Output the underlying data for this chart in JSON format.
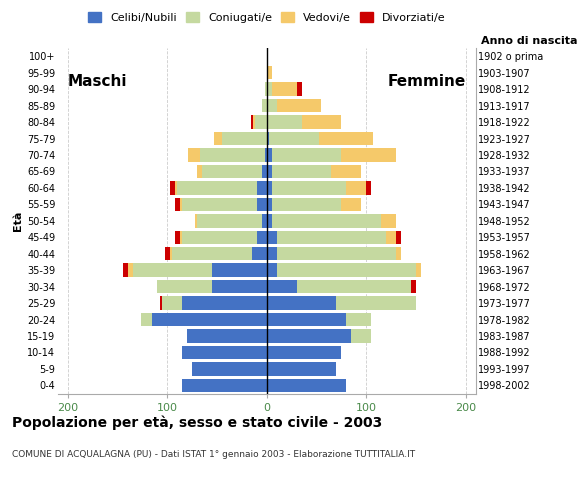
{
  "age_groups": [
    "0-4",
    "5-9",
    "10-14",
    "15-19",
    "20-24",
    "25-29",
    "30-34",
    "35-39",
    "40-44",
    "45-49",
    "50-54",
    "55-59",
    "60-64",
    "65-69",
    "70-74",
    "75-79",
    "80-84",
    "85-89",
    "90-94",
    "95-99",
    "100+"
  ],
  "birth_years": [
    "1998-2002",
    "1993-1997",
    "1988-1992",
    "1983-1987",
    "1978-1982",
    "1973-1977",
    "1968-1972",
    "1963-1967",
    "1958-1962",
    "1953-1957",
    "1948-1952",
    "1943-1947",
    "1938-1942",
    "1933-1937",
    "1928-1932",
    "1923-1927",
    "1918-1922",
    "1913-1917",
    "1908-1912",
    "1903-1907",
    "1902 o prima"
  ],
  "males": {
    "celibi": [
      85,
      75,
      85,
      80,
      115,
      85,
      55,
      55,
      15,
      10,
      5,
      10,
      10,
      5,
      2,
      0,
      0,
      0,
      0,
      0,
      0
    ],
    "coniugati": [
      0,
      0,
      0,
      0,
      12,
      20,
      55,
      80,
      80,
      75,
      65,
      75,
      80,
      60,
      65,
      45,
      12,
      5,
      2,
      0,
      0
    ],
    "vedovi": [
      0,
      0,
      0,
      0,
      0,
      0,
      0,
      5,
      2,
      2,
      2,
      2,
      2,
      5,
      12,
      8,
      2,
      0,
      0,
      0,
      0
    ],
    "divorziati": [
      0,
      0,
      0,
      0,
      0,
      2,
      0,
      5,
      5,
      5,
      0,
      5,
      5,
      0,
      0,
      0,
      2,
      0,
      0,
      0,
      0
    ]
  },
  "females": {
    "celibi": [
      80,
      70,
      75,
      85,
      80,
      70,
      30,
      10,
      10,
      10,
      5,
      5,
      5,
      5,
      5,
      2,
      0,
      0,
      0,
      0,
      0
    ],
    "coniugati": [
      0,
      0,
      0,
      20,
      25,
      80,
      115,
      140,
      120,
      110,
      110,
      70,
      75,
      60,
      70,
      50,
      35,
      10,
      5,
      0,
      0
    ],
    "vedovi": [
      0,
      0,
      0,
      0,
      0,
      0,
      0,
      5,
      5,
      10,
      15,
      20,
      20,
      30,
      55,
      55,
      40,
      45,
      25,
      5,
      0
    ],
    "divorziati": [
      0,
      0,
      0,
      0,
      0,
      0,
      5,
      0,
      0,
      5,
      0,
      0,
      5,
      0,
      0,
      0,
      0,
      0,
      5,
      0,
      0
    ]
  },
  "colors": {
    "celibi": "#4472c4",
    "coniugati": "#c5d9a0",
    "vedovi": "#f5c96a",
    "divorziati": "#cc0000"
  },
  "xlim": 210,
  "title": "Popolazione per età, sesso e stato civile - 2003",
  "subtitle": "COMUNE DI ACQUALAGNA (PU) - Dati ISTAT 1° gennaio 2003 - Elaborazione TUTTITALIA.IT",
  "legend_labels": [
    "Celibi/Nubili",
    "Coniugati/e",
    "Vedovi/e",
    "Divorziati/e"
  ],
  "maschi_label": "Maschi",
  "femmine_label": "Femmine",
  "ylabel_left": "Età",
  "ylabel_right": "Anno di nascita"
}
